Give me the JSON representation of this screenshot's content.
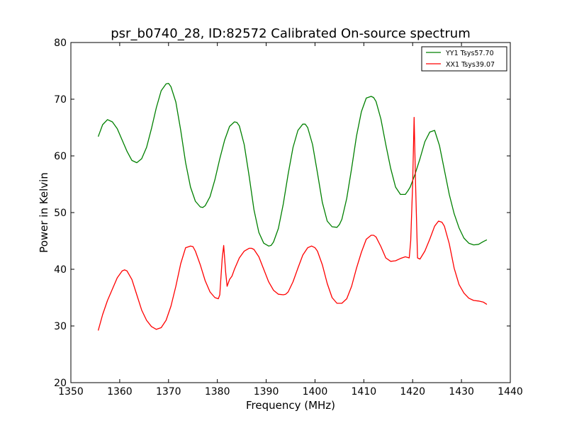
{
  "chart_data": {
    "type": "line",
    "title": "psr_b0740_28, ID:82572 Calibrated On-source spectrum",
    "xlabel": "Frequency (MHz)",
    "ylabel": "Power in Kelvin",
    "xlim": [
      1350,
      1440
    ],
    "ylim": [
      20,
      80
    ],
    "xticks": [
      1350,
      1360,
      1370,
      1380,
      1390,
      1400,
      1410,
      1420,
      1430,
      1440
    ],
    "yticks": [
      20,
      30,
      40,
      50,
      60,
      70,
      80
    ],
    "grid": false,
    "legend": "top-right",
    "series": [
      {
        "name": "YY1 Tsys57.70",
        "color": "#008000",
        "x": [
          1355.6,
          1356.5,
          1357.5,
          1358.5,
          1359.5,
          1360.5,
          1361.5,
          1362.5,
          1363.5,
          1364.5,
          1365.5,
          1366.5,
          1367.5,
          1368.5,
          1369.5,
          1370.0,
          1370.5,
          1371.5,
          1372.5,
          1373.5,
          1374.5,
          1375.5,
          1376.5,
          1377.0,
          1377.5,
          1378.5,
          1379.5,
          1380.5,
          1381.5,
          1382.5,
          1383.5,
          1384.0,
          1384.5,
          1385.5,
          1386.5,
          1387.5,
          1388.5,
          1389.5,
          1390.5,
          1391.0,
          1391.5,
          1392.5,
          1393.5,
          1394.5,
          1395.5,
          1396.5,
          1397.5,
          1398.0,
          1398.5,
          1399.5,
          1400.5,
          1401.5,
          1402.5,
          1403.5,
          1404.5,
          1405.0,
          1405.5,
          1406.5,
          1407.5,
          1408.5,
          1409.5,
          1410.5,
          1411.5,
          1412.0,
          1412.5,
          1413.5,
          1414.5,
          1415.5,
          1416.5,
          1417.5,
          1418.5,
          1419.0,
          1419.5,
          1420.5,
          1421.5,
          1422.5,
          1423.5,
          1424.5,
          1425.5,
          1426.5,
          1427.5,
          1428.5,
          1429.5,
          1430.5,
          1431.5,
          1432.5,
          1433.5,
          1434.5,
          1435.2
        ],
        "y": [
          63.4,
          65.5,
          66.4,
          66.0,
          64.8,
          62.8,
          60.8,
          59.2,
          58.8,
          59.5,
          61.5,
          64.8,
          68.5,
          71.5,
          72.7,
          72.8,
          72.2,
          69.5,
          64.5,
          58.8,
          54.5,
          52.0,
          51.0,
          50.9,
          51.2,
          52.8,
          55.8,
          59.5,
          62.8,
          65.2,
          66.0,
          65.9,
          65.3,
          62.0,
          56.5,
          50.5,
          46.5,
          44.6,
          44.1,
          44.2,
          44.8,
          47.2,
          51.5,
          56.8,
          61.5,
          64.5,
          65.6,
          65.6,
          65.0,
          62.0,
          57.0,
          51.8,
          48.5,
          47.5,
          47.4,
          47.9,
          48.8,
          52.5,
          57.8,
          63.5,
          67.8,
          70.2,
          70.5,
          70.3,
          69.6,
          66.5,
          62.0,
          57.8,
          54.5,
          53.2,
          53.2,
          53.8,
          54.5,
          56.8,
          59.5,
          62.5,
          64.2,
          64.5,
          61.8,
          57.5,
          53.2,
          49.8,
          47.3,
          45.5,
          44.6,
          44.3,
          44.4,
          44.9,
          45.2
        ]
      },
      {
        "name": "XX1 Tsys39.07",
        "color": "#ff0000",
        "x": [
          1355.6,
          1356.5,
          1357.5,
          1358.5,
          1359.5,
          1360.5,
          1361.0,
          1361.5,
          1362.5,
          1363.5,
          1364.5,
          1365.5,
          1366.5,
          1367.5,
          1368.5,
          1369.5,
          1370.5,
          1371.5,
          1372.5,
          1373.5,
          1374.5,
          1375.0,
          1375.5,
          1376.5,
          1377.5,
          1378.5,
          1379.5,
          1380.2,
          1380.5,
          1381.0,
          1381.3,
          1381.7,
          1382.0,
          1382.5,
          1383.0,
          1383.5,
          1384.0,
          1384.5,
          1385.5,
          1386.5,
          1387.0,
          1387.5,
          1388.5,
          1389.5,
          1390.5,
          1391.5,
          1392.5,
          1393.5,
          1394.0,
          1394.5,
          1395.5,
          1396.5,
          1397.5,
          1398.5,
          1399.3,
          1400.0,
          1400.5,
          1401.5,
          1402.5,
          1403.5,
          1404.5,
          1405.5,
          1406.5,
          1407.5,
          1408.5,
          1409.5,
          1410.5,
          1411.5,
          1412.0,
          1412.5,
          1413.5,
          1414.5,
          1415.5,
          1416.5,
          1417.5,
          1418.5,
          1419.3,
          1419.6,
          1420.0,
          1420.3,
          1420.6,
          1421.0,
          1421.5,
          1422.5,
          1423.5,
          1424.5,
          1425.3,
          1426.0,
          1426.5,
          1427.5,
          1428.5,
          1429.5,
          1430.5,
          1431.5,
          1432.5,
          1433.5,
          1434.5,
          1435.2
        ],
        "y": [
          29.2,
          32.0,
          34.5,
          36.5,
          38.5,
          39.7,
          39.9,
          39.7,
          38.2,
          35.5,
          32.8,
          31.0,
          29.9,
          29.4,
          29.7,
          31.0,
          33.5,
          37.0,
          41.0,
          43.8,
          44.1,
          44.0,
          43.2,
          40.8,
          38.0,
          36.0,
          35.0,
          34.8,
          35.5,
          42.0,
          44.2,
          39.5,
          37.0,
          38.2,
          38.8,
          40.0,
          41.0,
          42.0,
          43.2,
          43.7,
          43.7,
          43.5,
          42.2,
          40.0,
          37.8,
          36.3,
          35.6,
          35.5,
          35.6,
          36.0,
          37.8,
          40.2,
          42.5,
          43.8,
          44.1,
          43.8,
          43.2,
          40.8,
          37.5,
          35.0,
          34.0,
          34.0,
          34.8,
          37.0,
          40.2,
          43.0,
          45.3,
          46.0,
          46.0,
          45.7,
          44.0,
          42.0,
          41.4,
          41.5,
          41.9,
          42.2,
          42.0,
          45.0,
          55.0,
          66.8,
          55.0,
          42.0,
          41.8,
          43.2,
          45.3,
          47.6,
          48.5,
          48.3,
          47.6,
          44.5,
          40.2,
          37.3,
          35.8,
          34.9,
          34.5,
          34.4,
          34.2,
          33.8
        ]
      }
    ]
  }
}
